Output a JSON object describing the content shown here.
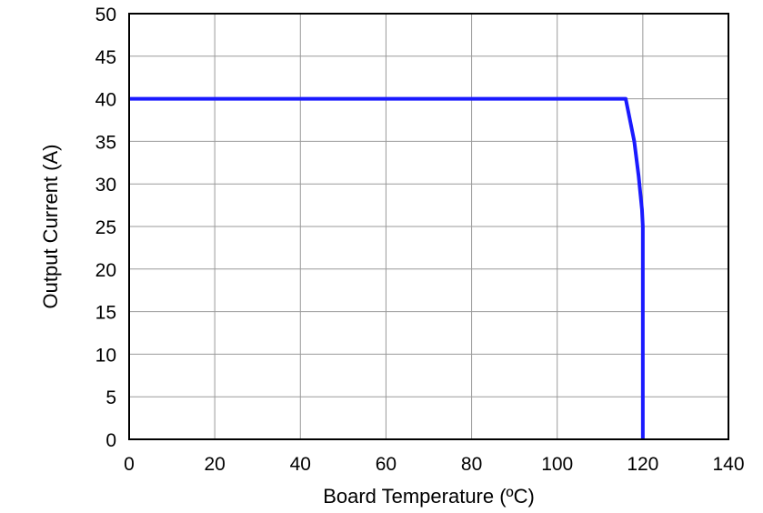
{
  "chart_data": {
    "type": "line",
    "title": "",
    "xlabel": "Board Temperature (ºC)",
    "ylabel": "Output Current (A)",
    "xlim": [
      0,
      140
    ],
    "ylim": [
      0,
      50
    ],
    "x_ticks": [
      0,
      20,
      40,
      60,
      80,
      100,
      120,
      140
    ],
    "y_ticks": [
      0,
      5,
      10,
      15,
      20,
      25,
      30,
      35,
      40,
      45,
      50
    ],
    "grid": true,
    "legend": "none",
    "series": [
      {
        "color": "#1a1aff",
        "points": [
          [
            0,
            40
          ],
          [
            116,
            40
          ],
          [
            117,
            37.5
          ],
          [
            118,
            35
          ],
          [
            119,
            31
          ],
          [
            119.8,
            27
          ],
          [
            120,
            25
          ],
          [
            120,
            0
          ]
        ]
      }
    ]
  }
}
